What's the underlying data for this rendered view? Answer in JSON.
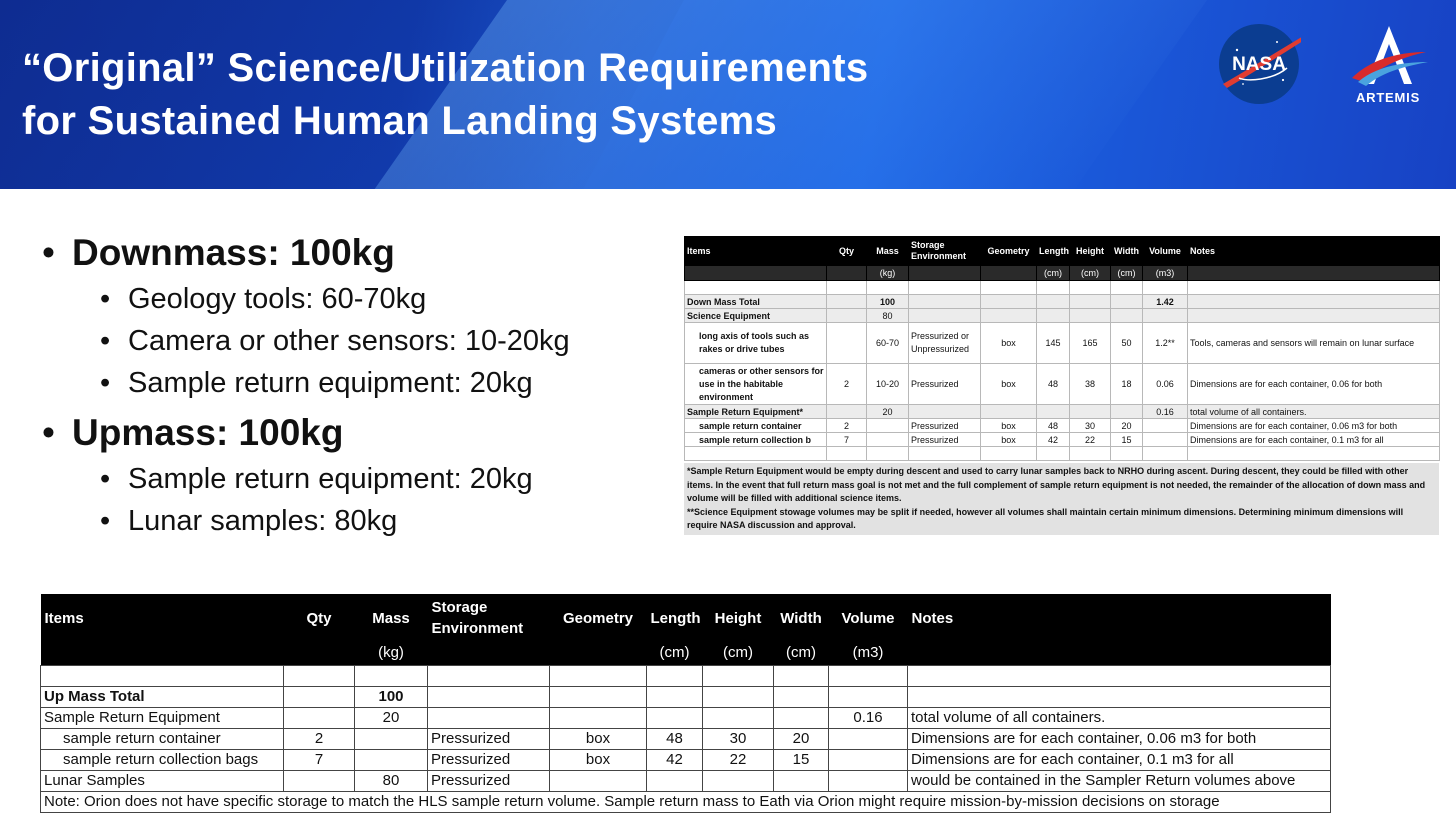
{
  "title": {
    "line1": "“Original” Science/Utilization Requirements",
    "line2": "for Sustained Human Landing Systems"
  },
  "logos": {
    "nasa_text": "NASA",
    "artemis_text": "ARTEMIS"
  },
  "bullets": {
    "downmass": "Downmass: 100kg",
    "downmass_items": [
      "Geology tools: 60-70kg",
      "Camera or other sensors: 10-20kg",
      "Sample return equipment: 20kg"
    ],
    "upmass": "Upmass: 100kg",
    "upmass_items": [
      "Sample return equipment: 20kg",
      "Lunar samples: 80kg"
    ]
  },
  "small_table": {
    "headers": [
      "Items",
      "Qty",
      "Mass",
      "Storage Environment",
      "Geometry",
      "Length",
      "Height",
      "Width",
      "Volume",
      "Notes"
    ],
    "units": [
      "",
      "",
      "(kg)",
      "",
      "",
      "(cm)",
      "(cm)",
      "(cm)",
      "(m3)",
      ""
    ],
    "rows": [
      [
        "Down Mass Total",
        "",
        "100",
        "",
        "",
        "",
        "",
        "",
        "1.42",
        ""
      ],
      [
        "Science Equipment",
        "",
        "80",
        "",
        "",
        "",
        "",
        "",
        "",
        ""
      ],
      [
        "long axis of tools such as rakes or drive tubes",
        "",
        "60-70",
        "Pressurized or Unpressurized",
        "box",
        "145",
        "165",
        "50",
        "1.2**",
        "Tools, cameras and sensors will remain on lunar surface"
      ],
      [
        "cameras or other sensors for use in the habitable environment",
        "2",
        "10-20",
        "Pressurized",
        "box",
        "48",
        "38",
        "18",
        "0.06",
        "Dimensions are for each container, 0.06 for both"
      ],
      [
        "Sample Return Equipment*",
        "",
        "20",
        "",
        "",
        "",
        "",
        "",
        "0.16",
        "total volume of all containers."
      ],
      [
        "sample return container",
        "2",
        "",
        "Pressurized",
        "box",
        "48",
        "30",
        "20",
        "",
        "Dimensions are for each container, 0.06 m3 for both"
      ],
      [
        "sample return collection b",
        "7",
        "",
        "Pressurized",
        "box",
        "42",
        "22",
        "15",
        "",
        "Dimensions are for each container, 0.1 m3 for all"
      ]
    ],
    "note1": "*Sample Return Equipment would be empty during descent and used to carry lunar samples back to NRHO during ascent.  During descent, they could be filled with other items.  In the event that full return mass goal is not met and the full complement of sample return equipment is not needed, the remainder of the allocation of down mass and volume will be filled with additional science items.",
    "note2": "**Science Equipment stowage volumes may be split if needed, however all volumes shall maintain certain minimum dimensions. Determining minimum dimensions will require NASA discussion and approval."
  },
  "big_table": {
    "headers": [
      "Items",
      "Qty",
      "Mass",
      "Storage Environment",
      "Geometry",
      "Length",
      "Height",
      "Width",
      "Volume",
      "Notes"
    ],
    "units": [
      "",
      "",
      "(kg)",
      "",
      "",
      "(cm)",
      "(cm)",
      "(cm)",
      "(m3)",
      ""
    ],
    "rows": [
      [
        "Up Mass Total",
        "",
        "100",
        "",
        "",
        "",
        "",
        "",
        "",
        ""
      ],
      [
        "Sample Return Equipment",
        "",
        "20",
        "",
        "",
        "",
        "",
        "",
        "0.16",
        "total volume of all containers."
      ],
      [
        "sample return container",
        "2",
        "",
        "Pressurized",
        "box",
        "48",
        "30",
        "20",
        "",
        "Dimensions are for each container, 0.06 m3 for both"
      ],
      [
        "sample return collection bags",
        "7",
        "",
        "Pressurized",
        "box",
        "42",
        "22",
        "15",
        "",
        "Dimensions are for each container, 0.1 m3 for all"
      ],
      [
        "Lunar Samples",
        "",
        "80",
        "Pressurized",
        "",
        "",
        "",
        "",
        "",
        "would be contained in the Sampler Return volumes above"
      ]
    ],
    "note": "Note: Orion does not have specific storage to match the HLS sample return volume. Sample return mass to Eath via Orion might require mission-by-mission decisions on storage"
  }
}
